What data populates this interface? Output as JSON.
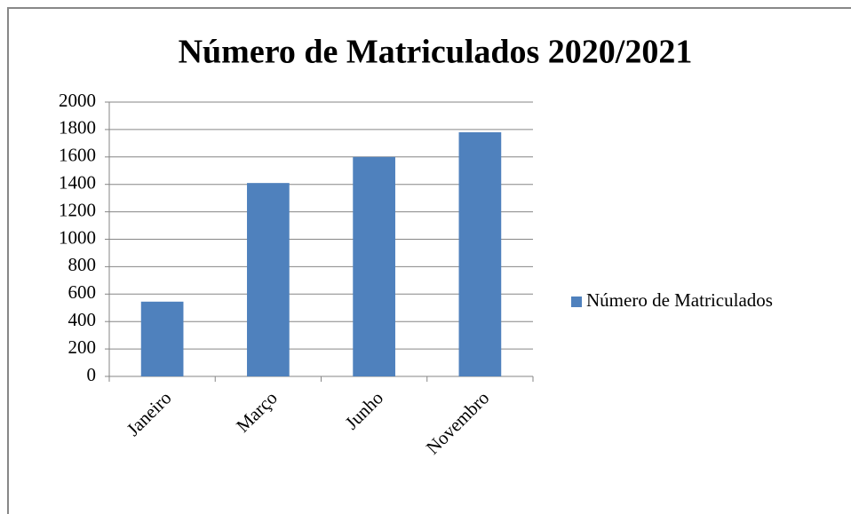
{
  "chart_data": {
    "type": "bar",
    "title": "Número de Matriculados 2020/2021",
    "categories": [
      "Janeiro",
      "Março",
      "Junho",
      "Novembro"
    ],
    "series": [
      {
        "name": "Número de Matriculados",
        "color": "#4f81bd",
        "values": [
          545,
          1410,
          1600,
          1780
        ]
      }
    ],
    "ylim": [
      0,
      2000
    ],
    "yticks": [
      0,
      200,
      400,
      600,
      800,
      1000,
      1200,
      1400,
      1600,
      1800,
      2000
    ],
    "grid": true,
    "legend": "right"
  }
}
